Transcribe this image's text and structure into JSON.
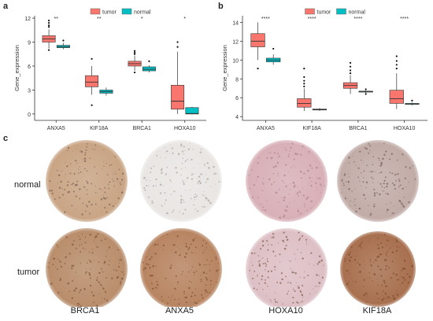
{
  "panels": {
    "a": "a",
    "b": "b",
    "c": "c"
  },
  "colors": {
    "tumor": "#F8766D",
    "normal": "#00BFC4"
  },
  "chart_data": [
    {
      "type": "box",
      "panel": "a",
      "ylabel": "Gene_expression",
      "ylim": [
        -0.8,
        12.3
      ],
      "yticks": [
        "0",
        "3",
        "6",
        "9",
        "12"
      ],
      "ytick_values": [
        0,
        3,
        6,
        9,
        12
      ],
      "legend": {
        "placement": "top-center",
        "entries": [
          "tumor",
          "normal"
        ]
      },
      "categories": [
        "ANXA5",
        "KIF18A",
        "BRCA1",
        "HOXA10"
      ],
      "significance": [
        "**",
        "**",
        "*",
        "*"
      ],
      "series": [
        {
          "name": "tumor",
          "boxes": [
            {
              "min": 8.2,
              "q1": 9.0,
              "median": 9.4,
              "q3": 9.8,
              "max": 10.6,
              "outliers": [
                11.7,
                11.4,
                11.1,
                10.9,
                8.0
              ]
            },
            {
              "min": 2.4,
              "q1": 3.4,
              "median": 4.0,
              "q3": 4.8,
              "max": 6.0,
              "outliers": [
                6.9,
                1.1
              ]
            },
            {
              "min": 5.4,
              "q1": 6.0,
              "median": 6.3,
              "q3": 6.6,
              "max": 7.3,
              "outliers": [
                7.9,
                7.7,
                7.5,
                5.2
              ]
            },
            {
              "min": 0.0,
              "q1": 0.6,
              "median": 1.6,
              "q3": 3.6,
              "max": 7.8,
              "outliers": [
                9.0,
                8.4
              ]
            }
          ]
        },
        {
          "name": "normal",
          "boxes": [
            {
              "min": 8.1,
              "q1": 8.3,
              "median": 8.4,
              "q3": 8.6,
              "max": 8.9,
              "outliers": [
                9.2
              ]
            },
            {
              "min": 2.3,
              "q1": 2.6,
              "median": 2.8,
              "q3": 3.0,
              "max": 3.3,
              "outliers": []
            },
            {
              "min": 5.2,
              "q1": 5.4,
              "median": 5.6,
              "q3": 5.9,
              "max": 6.1,
              "outliers": [
                6.6
              ]
            },
            {
              "min": 0.0,
              "q1": 0.0,
              "median": 0.05,
              "q3": 0.8,
              "max": 0.9,
              "outliers": []
            }
          ]
        }
      ]
    },
    {
      "type": "box",
      "panel": "b",
      "ylabel": "Gene_expression",
      "ylim": [
        3.6,
        14.7
      ],
      "yticks": [
        "4",
        "6",
        "8",
        "10",
        "12",
        "14"
      ],
      "ytick_values": [
        4,
        6,
        8,
        10,
        12,
        14
      ],
      "legend": {
        "placement": "top-center",
        "entries": [
          "tumor",
          "normal"
        ]
      },
      "categories": [
        "ANXA5",
        "KIF18A",
        "BRCA1",
        "HOXA10"
      ],
      "significance": [
        "****",
        "****",
        "****",
        "****"
      ],
      "series": [
        {
          "name": "tumor",
          "boxes": [
            {
              "min": 10.0,
              "q1": 11.4,
              "median": 12.0,
              "q3": 12.8,
              "max": 14.0,
              "outliers": [
                9.1
              ]
            },
            {
              "min": 4.6,
              "q1": 5.0,
              "median": 5.4,
              "q3": 5.9,
              "max": 7.0,
              "outliers": [
                9.1,
                8.2,
                7.8,
                7.5,
                7.2
              ]
            },
            {
              "min": 6.4,
              "q1": 7.0,
              "median": 7.3,
              "q3": 7.6,
              "max": 8.4,
              "outliers": [
                9.7,
                9.3,
                8.9,
                8.6
              ]
            },
            {
              "min": 4.8,
              "q1": 5.4,
              "median": 5.9,
              "q3": 6.8,
              "max": 8.6,
              "outliers": [
                10.4,
                9.9,
                9.5,
                9.1
              ]
            }
          ]
        },
        {
          "name": "normal",
          "boxes": [
            {
              "min": 9.5,
              "q1": 9.8,
              "median": 10.0,
              "q3": 10.2,
              "max": 10.6,
              "outliers": [
                11.2
              ]
            },
            {
              "min": 4.6,
              "q1": 4.7,
              "median": 4.75,
              "q3": 4.8,
              "max": 4.9,
              "outliers": []
            },
            {
              "min": 6.5,
              "q1": 6.6,
              "median": 6.65,
              "q3": 6.7,
              "max": 6.8,
              "outliers": [
                6.9,
                6.4
              ]
            },
            {
              "min": 5.2,
              "q1": 5.3,
              "median": 5.35,
              "q3": 5.4,
              "max": 5.5,
              "outliers": [
                5.7
              ]
            }
          ]
        }
      ]
    }
  ],
  "ihc": {
    "row_labels": [
      "normal",
      "tumor"
    ],
    "column_labels": [
      "BRCA1",
      "ANXA5",
      "HOXA10",
      "KIF18A"
    ],
    "stains": [
      [
        "#c9a585",
        "#e9e6e4",
        "#d8b0b8",
        "#c2aca8"
      ],
      [
        "#b98e6c",
        "#b88562",
        "#ddc0c6",
        "#a8704f"
      ]
    ]
  }
}
